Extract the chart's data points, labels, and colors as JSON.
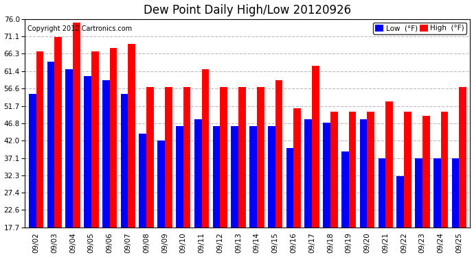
{
  "title": "Dew Point Daily High/Low 20120926",
  "copyright": "Copyright 2012 Cartronics.com",
  "legend_low": "Low  (°F)",
  "legend_high": "High  (°F)",
  "categories": [
    "09/02",
    "09/03",
    "09/04",
    "09/05",
    "09/06",
    "09/07",
    "09/08",
    "09/09",
    "09/10",
    "09/11",
    "09/12",
    "09/13",
    "09/14",
    "09/15",
    "09/16",
    "09/17",
    "09/18",
    "09/19",
    "09/20",
    "09/21",
    "09/22",
    "09/23",
    "09/24",
    "09/25"
  ],
  "high_values": [
    67,
    71,
    75,
    67,
    68,
    69,
    57,
    57,
    57,
    62,
    57,
    57,
    57,
    59,
    51,
    63,
    50,
    50,
    50,
    53,
    50,
    49,
    50,
    57
  ],
  "low_values": [
    55,
    64,
    62,
    60,
    59,
    55,
    44,
    42,
    46,
    48,
    46,
    46,
    46,
    46,
    40,
    48,
    47,
    39,
    48,
    37,
    32,
    37,
    37,
    37
  ],
  "low_color": "#0000ff",
  "high_color": "#ff0000",
  "background_color": "#ffffff",
  "plot_bg_color": "#ffffff",
  "yticks": [
    17.7,
    22.6,
    27.4,
    32.3,
    37.1,
    42.0,
    46.8,
    51.7,
    56.6,
    61.4,
    66.3,
    71.1,
    76.0
  ],
  "ylim": [
    17.7,
    76.0
  ],
  "grid_color": "#bbbbbb",
  "bar_width": 0.4,
  "title_fontsize": 12,
  "tick_fontsize": 7.5,
  "copyright_fontsize": 7
}
